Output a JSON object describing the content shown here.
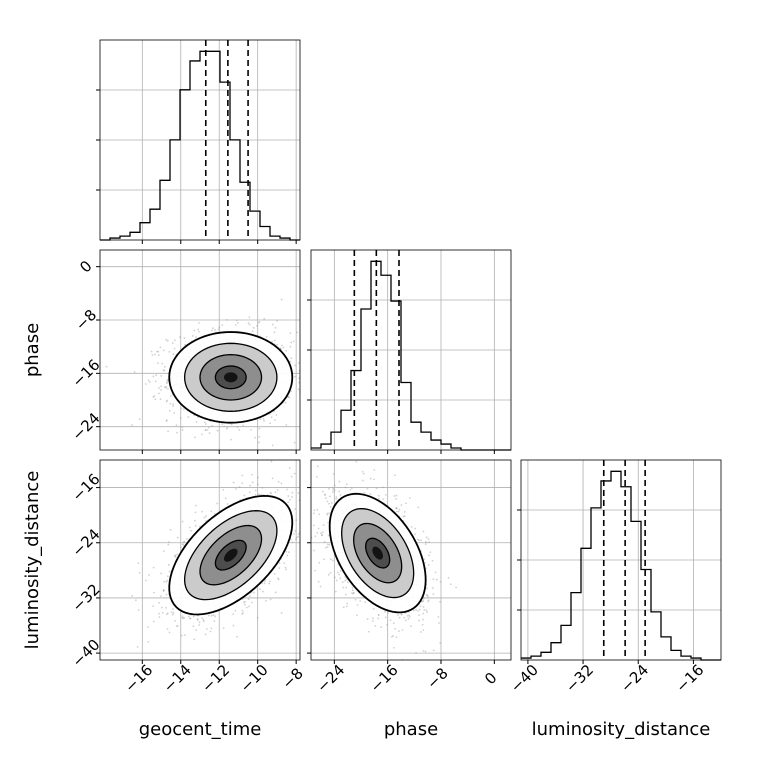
{
  "chart_data": {
    "type": "corner",
    "grid": true,
    "parameters": [
      "geocent_time",
      "phase",
      "luminosity_distance"
    ],
    "axis_labels": {
      "x": [
        "geocent_time",
        "phase",
        "luminosity_distance"
      ],
      "y": [
        "",
        "phase",
        "luminosity_distance"
      ]
    },
    "ranges": {
      "geocent_time": [
        -18.2,
        -7.8
      ],
      "phase": [
        -27.5,
        2.5
      ],
      "luminosity_distance": [
        -41.0,
        -12.0
      ]
    },
    "ticks": {
      "geocent_time": [
        -16,
        -14,
        -12,
        -10,
        -8
      ],
      "phase": [
        -24,
        -16,
        -8,
        0
      ],
      "luminosity_distance": [
        -40,
        -32,
        -24,
        -16
      ]
    },
    "tick_labels": {
      "geocent_time": [
        "−16",
        "−14",
        "−12",
        "−10",
        "−8"
      ],
      "phase": [
        "−24",
        "−16",
        "−8",
        "0"
      ],
      "luminosity_distance": [
        "−40",
        "−32",
        "−24",
        "−16"
      ]
    },
    "histograms": [
      {
        "parameter": "geocent_time",
        "bin_edges": [
          -18.2,
          -17.68,
          -17.16,
          -16.64,
          -16.12,
          -15.6,
          -15.08,
          -14.56,
          -14.04,
          -13.52,
          -13.0,
          -12.48,
          -11.96,
          -11.44,
          -10.92,
          -10.4,
          -9.88,
          -9.36,
          -8.84,
          -8.32,
          -7.8
        ],
        "counts": [
          0,
          1,
          2,
          4,
          9,
          16,
          31,
          52,
          78,
          93,
          98,
          98,
          82,
          52,
          30,
          15,
          7,
          2,
          1,
          0
        ],
        "quantiles": [
          -12.7,
          -11.55,
          -10.5
        ]
      },
      {
        "parameter": "phase",
        "bin_edges": [
          -27.5,
          -26.0,
          -24.5,
          -23.0,
          -21.5,
          -20.0,
          -18.5,
          -17.0,
          -15.5,
          -14.0,
          -12.5,
          -11.0,
          -9.5,
          -8.0,
          -6.5,
          -5.0,
          -3.5,
          -2.0,
          -0.5,
          1.0,
          2.5
        ],
        "counts": [
          1,
          3,
          9,
          20,
          40,
          71,
          95,
          88,
          75,
          34,
          14,
          9,
          5,
          3,
          1,
          0,
          0,
          0,
          0,
          0
        ],
        "quantiles": [
          -21.0,
          -17.7,
          -14.3
        ]
      },
      {
        "parameter": "luminosity_distance",
        "bin_edges": [
          -41.0,
          -39.55,
          -38.1,
          -36.65,
          -35.2,
          -33.75,
          -32.3,
          -30.85,
          -29.4,
          -27.95,
          -26.5,
          -25.05,
          -23.6,
          -22.15,
          -20.7,
          -19.25,
          -17.8,
          -16.35,
          -14.9,
          -13.45,
          -12.0
        ],
        "counts": [
          1,
          2,
          4,
          9,
          18,
          35,
          58,
          79,
          93,
          98,
          90,
          72,
          47,
          25,
          12,
          5,
          2,
          1,
          0,
          0
        ],
        "quantiles": [
          -29.0,
          -25.9,
          -23.0
        ]
      }
    ],
    "scatter_panels": [
      {
        "x": "geocent_time",
        "y": "phase",
        "mean": [
          -11.4,
          -16.6
        ],
        "std": [
          1.6,
          3.4
        ],
        "correlation": 0.0
      },
      {
        "x": "geocent_time",
        "y": "luminosity_distance",
        "mean": [
          -11.4,
          -25.8
        ],
        "std": [
          1.6,
          4.3
        ],
        "correlation": 0.55
      },
      {
        "x": "phase",
        "y": "luminosity_distance",
        "mean": [
          -17.5,
          -25.5
        ],
        "std": [
          3.6,
          4.3
        ],
        "correlation": -0.45
      }
    ]
  }
}
